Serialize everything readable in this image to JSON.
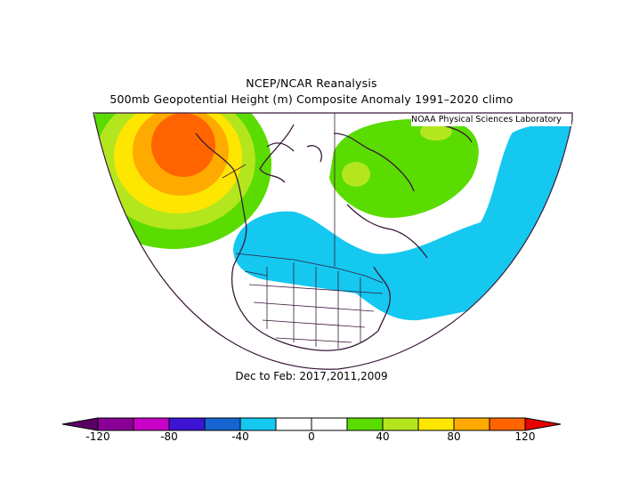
{
  "title": {
    "line1": "NCEP/NCAR Reanalysis",
    "line2": "500mb Geopotential Height (m) Composite Anomaly 1991–2020 climo"
  },
  "credit": "NOAA Physical Sciences Laboratory",
  "period": "Dec to Feb: 2017,2011,2009",
  "colorbar": {
    "ticks": [
      "-120",
      "-80",
      "-40",
      "0",
      "40",
      "80",
      "120"
    ],
    "colors": [
      "#8a0096",
      "#c800c8",
      "#3c14d2",
      "#1464d2",
      "#14c8f0",
      "#ffffff",
      "#ffffff",
      "#5adc00",
      "#b4e61e",
      "#ffe600",
      "#ffaa00",
      "#ff6400"
    ],
    "low_triangle_color": "#5a0064",
    "high_triangle_color": "#e60000"
  }
}
